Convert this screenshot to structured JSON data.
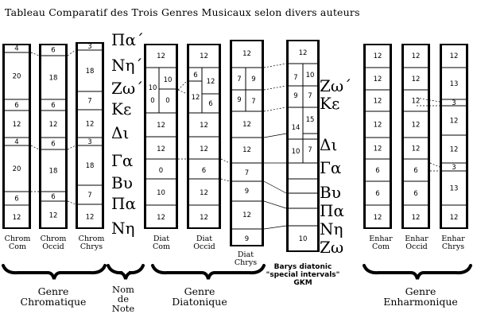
{
  "title": "Tableau Comparatif des Trois Genres Musicaux selon divers auteurs",
  "note_names_top": [
    "Πα΄",
    "Νη΄",
    "Ζω΄",
    "Κε",
    "Δι",
    "Γα",
    "Βυ",
    "Πα",
    "Νη"
  ],
  "note_names_right": [
    "Ζω΄",
    "Κε",
    "Δι",
    "Γα",
    "Βυ",
    "Πα",
    "Νη",
    "Ζω"
  ],
  "columns": [
    {
      "label": [
        "Chrom",
        "Com"
      ],
      "cells": [
        "4",
        "20",
        "6",
        "12",
        "4",
        "20",
        "6",
        "12"
      ]
    },
    {
      "label": [
        "Chrom",
        "Occid"
      ],
      "cells": [
        "6",
        "18",
        "6",
        "12",
        "6",
        "18",
        "6",
        "12"
      ]
    },
    {
      "label": [
        "Chrom",
        "Chrys"
      ],
      "cells": [
        "3",
        "18",
        "7",
        "12",
        "3",
        "18",
        "7",
        "12"
      ]
    },
    {
      "label": [
        "Diat",
        "Com"
      ],
      "cells": [
        "12",
        "10",
        "10",
        "0",
        "0",
        "12",
        "12",
        "0",
        "10",
        "12"
      ]
    },
    {
      "label": [
        "Diat",
        "Occid"
      ],
      "cells": [
        "12",
        "6",
        "12",
        "12",
        "6",
        "12",
        "12",
        "6",
        "12",
        "12"
      ]
    },
    {
      "label": [
        "Diat",
        "Chrys"
      ],
      "cells": [
        "12",
        "7",
        "9",
        "9",
        "7",
        "12",
        "12",
        "7",
        "9",
        "12",
        "9"
      ]
    },
    {
      "label": [],
      "cells": [
        "12",
        "7",
        "10",
        "9",
        "7",
        "15",
        "14",
        "10",
        "7",
        "10"
      ]
    },
    {
      "label": [
        "Enhar",
        "Com"
      ],
      "cells": [
        "12",
        "12",
        "12",
        "12",
        "12",
        "6",
        "6",
        "12",
        "12"
      ]
    },
    {
      "label": [
        "Enhar",
        "Occid"
      ],
      "cells": [
        "12",
        "12",
        "12",
        "12",
        "12",
        "6",
        "6",
        "12",
        "12"
      ]
    },
    {
      "label": [
        "Enhar",
        "Chrys"
      ],
      "cells": [
        "12",
        "13",
        "3",
        "12",
        "12",
        "3",
        "13",
        "12"
      ]
    }
  ],
  "barys_label": [
    "Barys diatonic",
    "\"special intervals\"",
    "GKM"
  ],
  "genres": [
    {
      "lines": [
        "Genre",
        "Chromatique"
      ]
    },
    {
      "lines": [
        "Nom",
        "de",
        "Note"
      ]
    },
    {
      "lines": [
        "Genre",
        "Diatonique"
      ]
    },
    {
      "lines": [
        "Genre",
        "Enharmonique"
      ]
    }
  ]
}
